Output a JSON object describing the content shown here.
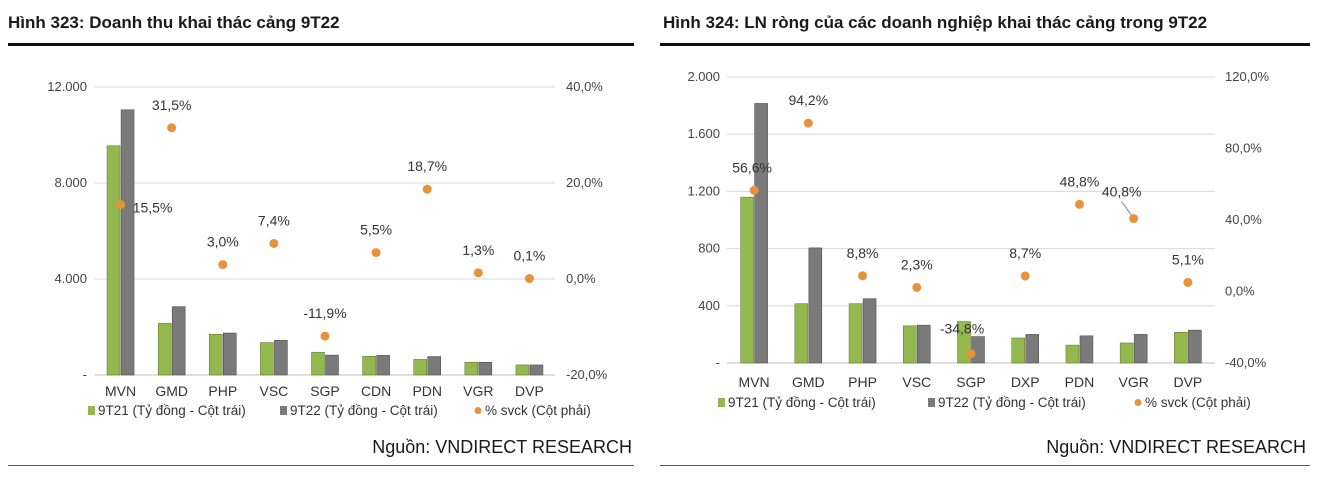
{
  "chart_data": [
    {
      "type": "bar",
      "title": "Hình 323: Doanh thu khai thác cảng 9T22",
      "source": "Nguồn: VNDIRECT RESEARCH",
      "categories": [
        "MVN",
        "GMD",
        "PHP",
        "VSC",
        "SGP",
        "CDN",
        "PDN",
        "VGR",
        "DVP"
      ],
      "series": [
        {
          "name": "9T21 (Tỷ đồng - Cột trái)",
          "axis": "left",
          "color": "#92b84e",
          "values": [
            9550,
            2150,
            1700,
            1350,
            950,
            780,
            650,
            530,
            420
          ]
        },
        {
          "name": "9T22 (Tỷ đồng - Cột trái)",
          "axis": "left",
          "color": "#7a7a7a",
          "values": [
            11050,
            2850,
            1750,
            1450,
            830,
            820,
            770,
            530,
            420
          ]
        },
        {
          "name": "% svck (Cột phải)",
          "axis": "right",
          "type": "scatter",
          "color": "#e8923c",
          "values": [
            15.5,
            31.5,
            3.0,
            7.4,
            -11.9,
            5.5,
            18.7,
            1.3,
            0.1
          ],
          "labels": [
            "15,5%",
            "31,5%",
            "3,0%",
            "7,4%",
            "-11,9%",
            "5,5%",
            "18,7%",
            "1,3%",
            "0,1%"
          ]
        }
      ],
      "yleft": {
        "min": 0,
        "max": 12000,
        "ticks": [
          0,
          4000,
          8000,
          12000
        ],
        "tick_labels": [
          "-",
          "4.000",
          "8.000",
          "12.000"
        ]
      },
      "yright": {
        "min": -20,
        "max": 40,
        "ticks": [
          -20,
          0,
          20,
          40
        ],
        "tick_labels": [
          "-20,0%",
          "0,0%",
          "20,0%",
          "40,0%"
        ]
      },
      "grid": true,
      "legend": "bottom"
    },
    {
      "type": "bar",
      "title": "Hình 324: LN ròng của các doanh nghiệp khai thác cảng trong 9T22",
      "source": "Nguồn: VNDIRECT RESEARCH",
      "categories": [
        "MVN",
        "GMD",
        "PHP",
        "VSC",
        "SGP",
        "DXP",
        "PDN",
        "VGR",
        "DVP"
      ],
      "series": [
        {
          "name": "9T21 (Tỷ đồng - Cột trái)",
          "axis": "left",
          "color": "#92b84e",
          "values": [
            1160,
            415,
            415,
            260,
            290,
            175,
            125,
            140,
            215
          ]
        },
        {
          "name": "9T22 (Tỷ đồng - Cột trái)",
          "axis": "left",
          "color": "#7a7a7a",
          "values": [
            1815,
            805,
            450,
            265,
            185,
            200,
            190,
            200,
            230
          ]
        },
        {
          "name": "% svck (Cột phải)",
          "axis": "right",
          "type": "scatter",
          "color": "#e8923c",
          "values": [
            56.6,
            94.2,
            8.8,
            2.3,
            -34.8,
            8.7,
            48.8,
            40.8,
            5.1
          ],
          "labels": [
            "56,6%",
            "94,2%",
            "8,8%",
            "2,3%",
            "-34,8%",
            "8,7%",
            "48,8%",
            "40,8%",
            "5,1%"
          ]
        }
      ],
      "yleft": {
        "min": 0,
        "max": 2000,
        "ticks": [
          0,
          400,
          800,
          1200,
          1600,
          2000
        ],
        "tick_labels": [
          "-",
          "400",
          "800",
          "1.200",
          "1.600",
          "2.000"
        ]
      },
      "yright": {
        "min": -40,
        "max": 120,
        "ticks": [
          -40,
          0,
          40,
          80,
          120
        ],
        "tick_labels": [
          "-40,0%",
          "0,0%",
          "40,0%",
          "80,0%",
          "120,0%"
        ]
      },
      "grid": true,
      "legend": "bottom"
    }
  ]
}
